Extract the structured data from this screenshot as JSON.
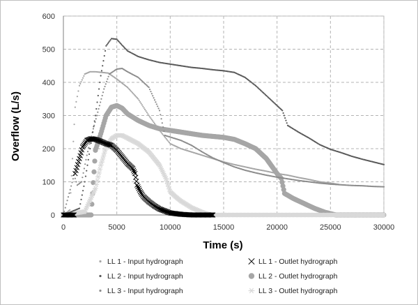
{
  "chart_data": {
    "type": "scatter",
    "xlabel": "Time (s)",
    "ylabel": "Overflow (L/s)",
    "xlim": [
      0,
      30000
    ],
    "ylim": [
      0,
      600
    ],
    "xticks": [
      0,
      5000,
      10000,
      15000,
      20000,
      25000,
      30000
    ],
    "yticks": [
      0,
      100,
      200,
      300,
      400,
      500,
      600
    ],
    "grid": "dashed",
    "legend": "bottom",
    "series": [
      {
        "name": "LL 1 - Input hydrograph",
        "color": "#a6a6a6",
        "marker": "dot",
        "points": [
          [
            0,
            0
          ],
          [
            600,
            15
          ],
          [
            1100,
            325
          ],
          [
            1500,
            390
          ],
          [
            2000,
            425
          ],
          [
            2500,
            432
          ],
          [
            3000,
            432
          ],
          [
            3600,
            430
          ],
          [
            4200,
            428
          ],
          [
            5000,
            410
          ],
          [
            6000,
            385
          ],
          [
            7000,
            350
          ],
          [
            8000,
            300
          ],
          [
            9000,
            255
          ],
          [
            10000,
            215
          ],
          [
            11000,
            200
          ],
          [
            12000,
            190
          ],
          [
            13000,
            180
          ],
          [
            14000,
            170
          ],
          [
            15000,
            160
          ],
          [
            16000,
            152
          ],
          [
            17000,
            145
          ],
          [
            18000,
            138
          ],
          [
            19000,
            132
          ],
          [
            20000,
            125
          ],
          [
            21000,
            120
          ],
          [
            22000,
            113
          ],
          [
            23000,
            107
          ],
          [
            24000,
            100
          ],
          [
            25000,
            96
          ],
          [
            25800,
            92
          ]
        ]
      },
      {
        "name": "LL 2 - Input hydrograph",
        "color": "#595959",
        "marker": "dot",
        "points": [
          [
            0,
            0
          ],
          [
            1500,
            20
          ],
          [
            2000,
            100
          ],
          [
            2500,
            200
          ],
          [
            3000,
            300
          ],
          [
            3500,
            420
          ],
          [
            4000,
            510
          ],
          [
            4500,
            532
          ],
          [
            5000,
            530
          ],
          [
            5500,
            512
          ],
          [
            6000,
            495
          ],
          [
            7000,
            478
          ],
          [
            8000,
            468
          ],
          [
            9000,
            460
          ],
          [
            10000,
            455
          ],
          [
            11000,
            450
          ],
          [
            12000,
            445
          ],
          [
            13000,
            442
          ],
          [
            14000,
            438
          ],
          [
            15000,
            435
          ],
          [
            16000,
            430
          ],
          [
            17000,
            415
          ],
          [
            18000,
            390
          ],
          [
            19000,
            360
          ],
          [
            20000,
            330
          ],
          [
            20500,
            315
          ],
          [
            21000,
            270
          ],
          [
            22000,
            250
          ],
          [
            23000,
            232
          ],
          [
            24000,
            212
          ],
          [
            25000,
            198
          ],
          [
            26000,
            188
          ],
          [
            27000,
            177
          ],
          [
            28000,
            168
          ],
          [
            29000,
            160
          ],
          [
            30000,
            152
          ]
        ]
      },
      {
        "name": "LL 3 -  Input hydrograph",
        "color": "#8c8c8c",
        "marker": "dot",
        "points": [
          [
            0,
            0
          ],
          [
            1000,
            120
          ],
          [
            1300,
            90
          ],
          [
            1700,
            100
          ],
          [
            2200,
            180
          ],
          [
            2800,
            260
          ],
          [
            3300,
            320
          ],
          [
            3800,
            380
          ],
          [
            4300,
            425
          ],
          [
            5000,
            440
          ],
          [
            5500,
            442
          ],
          [
            6000,
            432
          ],
          [
            7000,
            415
          ],
          [
            8000,
            385
          ],
          [
            9000,
            315
          ],
          [
            9500,
            240
          ],
          [
            10000,
            235
          ],
          [
            11000,
            225
          ],
          [
            12000,
            210
          ],
          [
            13000,
            190
          ],
          [
            14000,
            172
          ],
          [
            15000,
            158
          ],
          [
            16000,
            145
          ],
          [
            17000,
            135
          ],
          [
            18000,
            127
          ],
          [
            19000,
            120
          ],
          [
            20000,
            114
          ],
          [
            21000,
            109
          ],
          [
            22000,
            104
          ],
          [
            23000,
            100
          ],
          [
            24000,
            96
          ],
          [
            25000,
            93
          ],
          [
            26000,
            91
          ],
          [
            27000,
            89
          ],
          [
            28000,
            88
          ],
          [
            29000,
            86
          ],
          [
            30000,
            85
          ]
        ]
      },
      {
        "name": "LL 1 - Outlet hydrograph",
        "color": "#000000",
        "marker": "x",
        "points": [
          [
            0,
            0
          ],
          [
            1000,
            0
          ],
          [
            1100,
            125
          ],
          [
            1500,
            170
          ],
          [
            1800,
            205
          ],
          [
            2200,
            225
          ],
          [
            2600,
            230
          ],
          [
            3000,
            228
          ],
          [
            3500,
            222
          ],
          [
            4000,
            215
          ],
          [
            4500,
            210
          ],
          [
            5000,
            195
          ],
          [
            5500,
            175
          ],
          [
            6000,
            155
          ],
          [
            6500,
            140
          ],
          [
            6700,
            125
          ],
          [
            6900,
            90
          ],
          [
            7200,
            70
          ],
          [
            7500,
            55
          ],
          [
            8000,
            40
          ],
          [
            8500,
            28
          ],
          [
            9000,
            18
          ],
          [
            9500,
            12
          ],
          [
            10000,
            6
          ],
          [
            11000,
            2
          ],
          [
            12000,
            0
          ],
          [
            13000,
            0
          ],
          [
            14000,
            0
          ]
        ]
      },
      {
        "name": "LL 2 - Outlet hydrograph",
        "color": "#a6a6a6",
        "marker": "circle",
        "points": [
          [
            0,
            0
          ],
          [
            1000,
            0
          ],
          [
            2000,
            0
          ],
          [
            2600,
            0
          ],
          [
            3000,
            195
          ],
          [
            3500,
            245
          ],
          [
            4000,
            300
          ],
          [
            4500,
            325
          ],
          [
            5000,
            330
          ],
          [
            5500,
            322
          ],
          [
            6000,
            305
          ],
          [
            7000,
            285
          ],
          [
            8000,
            270
          ],
          [
            9000,
            260
          ],
          [
            10000,
            255
          ],
          [
            11000,
            250
          ],
          [
            12000,
            245
          ],
          [
            13000,
            240
          ],
          [
            14000,
            237
          ],
          [
            15000,
            234
          ],
          [
            16000,
            228
          ],
          [
            17000,
            215
          ],
          [
            18000,
            200
          ],
          [
            19000,
            170
          ],
          [
            20000,
            125
          ],
          [
            20400,
            110
          ],
          [
            20700,
            65
          ],
          [
            21500,
            50
          ],
          [
            22500,
            35
          ],
          [
            23500,
            20
          ],
          [
            24500,
            8
          ],
          [
            25500,
            0
          ],
          [
            27000,
            0
          ],
          [
            28000,
            0
          ],
          [
            29000,
            0
          ],
          [
            30000,
            0
          ]
        ]
      },
      {
        "name": "LL 3 - Outlet hydrograph",
        "color": "#d9d9d9",
        "marker": "asterisk",
        "points": [
          [
            0,
            0
          ],
          [
            2000,
            10
          ],
          [
            3000,
            80
          ],
          [
            3500,
            150
          ],
          [
            4000,
            205
          ],
          [
            4500,
            230
          ],
          [
            5000,
            240
          ],
          [
            5500,
            240
          ],
          [
            6000,
            232
          ],
          [
            7000,
            215
          ],
          [
            8000,
            190
          ],
          [
            9000,
            150
          ],
          [
            9600,
            110
          ],
          [
            10000,
            70
          ],
          [
            10500,
            55
          ],
          [
            11000,
            42
          ],
          [
            11500,
            32
          ],
          [
            12000,
            22
          ],
          [
            12500,
            15
          ],
          [
            13000,
            8
          ],
          [
            13500,
            3
          ],
          [
            14000,
            0
          ],
          [
            16000,
            0
          ],
          [
            18000,
            0
          ],
          [
            20000,
            0
          ],
          [
            22000,
            0
          ],
          [
            24000,
            0
          ],
          [
            26000,
            0
          ],
          [
            28000,
            0
          ],
          [
            30000,
            0
          ]
        ]
      }
    ]
  }
}
